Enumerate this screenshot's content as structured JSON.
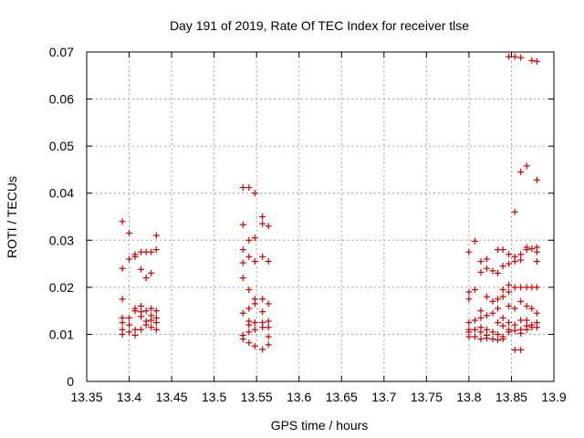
{
  "chart_data": {
    "type": "scatter",
    "title": "Day 191 of 2019, Rate Of TEC Index for receiver tlse",
    "xlabel": "GPS time / hours",
    "ylabel": "ROTI / TECUs",
    "xlim": [
      13.35,
      13.9
    ],
    "ylim": [
      0,
      0.07
    ],
    "xticks": [
      "13.35",
      "13.4",
      "13.45",
      "13.5",
      "13.55",
      "13.6",
      "13.65",
      "13.7",
      "13.75",
      "13.8",
      "13.85",
      "13.9"
    ],
    "yticks": [
      "0",
      "0.01",
      "0.02",
      "0.03",
      "0.04",
      "0.05",
      "0.06",
      "0.07"
    ],
    "grid": true,
    "marker_color": "#cc0000",
    "series": [
      {
        "name": "tlse",
        "points": [
          [
            13.392,
            0.034
          ],
          [
            13.392,
            0.024
          ],
          [
            13.392,
            0.0175
          ],
          [
            13.392,
            0.0135
          ],
          [
            13.392,
            0.0125
          ],
          [
            13.392,
            0.011
          ],
          [
            13.392,
            0.01
          ],
          [
            13.4,
            0.0315
          ],
          [
            13.4,
            0.026
          ],
          [
            13.4,
            0.0135
          ],
          [
            13.4,
            0.012
          ],
          [
            13.4,
            0.0105
          ],
          [
            13.407,
            0.027
          ],
          [
            13.407,
            0.0265
          ],
          [
            13.407,
            0.0155
          ],
          [
            13.407,
            0.015
          ],
          [
            13.407,
            0.011
          ],
          [
            13.407,
            0.0098
          ],
          [
            13.414,
            0.0275
          ],
          [
            13.414,
            0.0238
          ],
          [
            13.414,
            0.016
          ],
          [
            13.414,
            0.0148
          ],
          [
            13.414,
            0.0138
          ],
          [
            13.414,
            0.011
          ],
          [
            13.42,
            0.0275
          ],
          [
            13.42,
            0.022
          ],
          [
            13.42,
            0.015
          ],
          [
            13.42,
            0.0128
          ],
          [
            13.42,
            0.012
          ],
          [
            13.426,
            0.0275
          ],
          [
            13.426,
            0.023
          ],
          [
            13.426,
            0.0155
          ],
          [
            13.426,
            0.014
          ],
          [
            13.426,
            0.013
          ],
          [
            13.426,
            0.0115
          ],
          [
            13.432,
            0.031
          ],
          [
            13.432,
            0.028
          ],
          [
            13.432,
            0.015
          ],
          [
            13.432,
            0.0135
          ],
          [
            13.432,
            0.0125
          ],
          [
            13.432,
            0.011
          ],
          [
            13.534,
            0.0412
          ],
          [
            13.534,
            0.0333
          ],
          [
            13.534,
            0.028
          ],
          [
            13.534,
            0.0252
          ],
          [
            13.534,
            0.022
          ],
          [
            13.534,
            0.0145
          ],
          [
            13.534,
            0.0098
          ],
          [
            13.534,
            0.009
          ],
          [
            13.541,
            0.0412
          ],
          [
            13.541,
            0.03
          ],
          [
            13.541,
            0.0265
          ],
          [
            13.541,
            0.0195
          ],
          [
            13.541,
            0.0155
          ],
          [
            13.541,
            0.0128
          ],
          [
            13.541,
            0.012
          ],
          [
            13.541,
            0.0105
          ],
          [
            13.541,
            0.0082
          ],
          [
            13.548,
            0.04
          ],
          [
            13.548,
            0.0305
          ],
          [
            13.548,
            0.0255
          ],
          [
            13.548,
            0.0175
          ],
          [
            13.548,
            0.0165
          ],
          [
            13.548,
            0.0125
          ],
          [
            13.548,
            0.011
          ],
          [
            13.548,
            0.0075
          ],
          [
            13.557,
            0.035
          ],
          [
            13.557,
            0.0335
          ],
          [
            13.557,
            0.0265
          ],
          [
            13.557,
            0.0175
          ],
          [
            13.557,
            0.0148
          ],
          [
            13.557,
            0.0125
          ],
          [
            13.557,
            0.0115
          ],
          [
            13.557,
            0.0068
          ],
          [
            13.564,
            0.033
          ],
          [
            13.564,
            0.0255
          ],
          [
            13.564,
            0.0165
          ],
          [
            13.564,
            0.0128
          ],
          [
            13.564,
            0.0115
          ],
          [
            13.564,
            0.0095
          ],
          [
            13.564,
            0.0078
          ],
          [
            13.8,
            0.0275
          ],
          [
            13.8,
            0.019
          ],
          [
            13.8,
            0.0175
          ],
          [
            13.8,
            0.0125
          ],
          [
            13.8,
            0.011
          ],
          [
            13.8,
            0.0105
          ],
          [
            13.8,
            0.0095
          ],
          [
            13.807,
            0.0298
          ],
          [
            13.807,
            0.0195
          ],
          [
            13.807,
            0.013
          ],
          [
            13.807,
            0.011
          ],
          [
            13.807,
            0.0095
          ],
          [
            13.814,
            0.0255
          ],
          [
            13.814,
            0.0232
          ],
          [
            13.814,
            0.015
          ],
          [
            13.814,
            0.0135
          ],
          [
            13.814,
            0.0115
          ],
          [
            13.814,
            0.0105
          ],
          [
            13.814,
            0.009
          ],
          [
            13.821,
            0.026
          ],
          [
            13.821,
            0.024
          ],
          [
            13.821,
            0.018
          ],
          [
            13.821,
            0.014
          ],
          [
            13.821,
            0.011
          ],
          [
            13.821,
            0.0098
          ],
          [
            13.821,
            0.0092
          ],
          [
            13.828,
            0.0235
          ],
          [
            13.828,
            0.017
          ],
          [
            13.828,
            0.0145
          ],
          [
            13.828,
            0.0105
          ],
          [
            13.828,
            0.009
          ],
          [
            13.834,
            0.028
          ],
          [
            13.834,
            0.023
          ],
          [
            13.834,
            0.0175
          ],
          [
            13.834,
            0.0155
          ],
          [
            13.834,
            0.0125
          ],
          [
            13.834,
            0.01
          ],
          [
            13.834,
            0.0088
          ],
          [
            13.84,
            0.028
          ],
          [
            13.84,
            0.0245
          ],
          [
            13.84,
            0.0195
          ],
          [
            13.84,
            0.018
          ],
          [
            13.84,
            0.0135
          ],
          [
            13.84,
            0.0118
          ],
          [
            13.84,
            0.0095
          ],
          [
            13.84,
            0.009
          ],
          [
            13.847,
            0.069
          ],
          [
            13.847,
            0.027
          ],
          [
            13.847,
            0.025
          ],
          [
            13.847,
            0.0205
          ],
          [
            13.847,
            0.019
          ],
          [
            13.847,
            0.016
          ],
          [
            13.847,
            0.0125
          ],
          [
            13.847,
            0.011
          ],
          [
            13.847,
            0.0105
          ],
          [
            13.854,
            0.069
          ],
          [
            13.854,
            0.036
          ],
          [
            13.854,
            0.0265
          ],
          [
            13.854,
            0.0255
          ],
          [
            13.854,
            0.02
          ],
          [
            13.854,
            0.0155
          ],
          [
            13.854,
            0.012
          ],
          [
            13.854,
            0.0108
          ],
          [
            13.854,
            0.0067
          ],
          [
            13.861,
            0.0688
          ],
          [
            13.861,
            0.0445
          ],
          [
            13.861,
            0.027
          ],
          [
            13.861,
            0.0258
          ],
          [
            13.861,
            0.02
          ],
          [
            13.861,
            0.017
          ],
          [
            13.861,
            0.013
          ],
          [
            13.861,
            0.011
          ],
          [
            13.861,
            0.0102
          ],
          [
            13.861,
            0.0067
          ],
          [
            13.868,
            0.0458
          ],
          [
            13.868,
            0.0285
          ],
          [
            13.868,
            0.028
          ],
          [
            13.868,
            0.02
          ],
          [
            13.868,
            0.016
          ],
          [
            13.868,
            0.013
          ],
          [
            13.868,
            0.0118
          ],
          [
            13.868,
            0.011
          ],
          [
            13.874,
            0.0682
          ],
          [
            13.874,
            0.0282
          ],
          [
            13.874,
            0.02
          ],
          [
            13.874,
            0.0155
          ],
          [
            13.874,
            0.012
          ],
          [
            13.874,
            0.0115
          ],
          [
            13.88,
            0.068
          ],
          [
            13.88,
            0.0428
          ],
          [
            13.88,
            0.0285
          ],
          [
            13.88,
            0.0275
          ],
          [
            13.88,
            0.0255
          ],
          [
            13.88,
            0.02
          ],
          [
            13.88,
            0.0145
          ],
          [
            13.88,
            0.0125
          ],
          [
            13.88,
            0.0115
          ]
        ]
      }
    ]
  }
}
